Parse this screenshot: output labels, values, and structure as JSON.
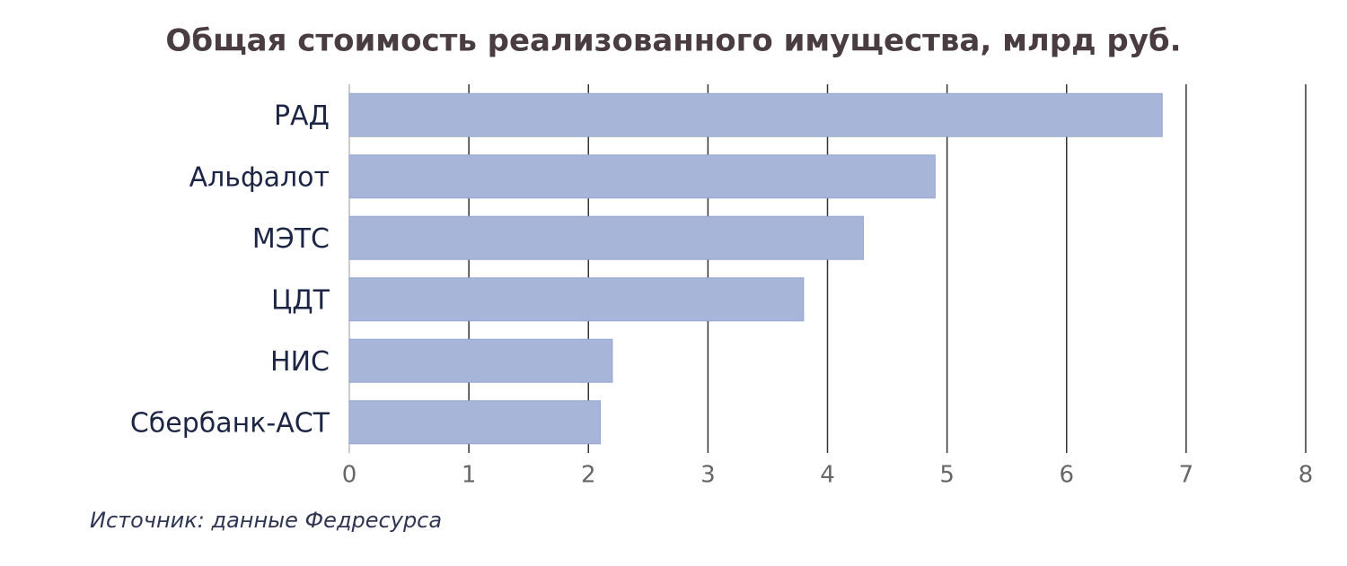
{
  "chart_data": {
    "type": "bar",
    "orientation": "horizontal",
    "title": "Общая стоимость реализованного имущества, млрд руб.",
    "categories": [
      "РАД",
      "Альфалот",
      "МЭТС",
      "ЦДТ",
      "НИС",
      "Сбербанк-АСТ"
    ],
    "values": [
      6.8,
      4.9,
      4.3,
      3.8,
      2.2,
      2.1
    ],
    "color": "#a7b5d8",
    "xlim": [
      0,
      8
    ],
    "xticks": [
      0,
      1,
      2,
      3,
      4,
      5,
      6,
      7,
      8
    ],
    "grid": true,
    "source": "Источник: данные Федресурса"
  }
}
